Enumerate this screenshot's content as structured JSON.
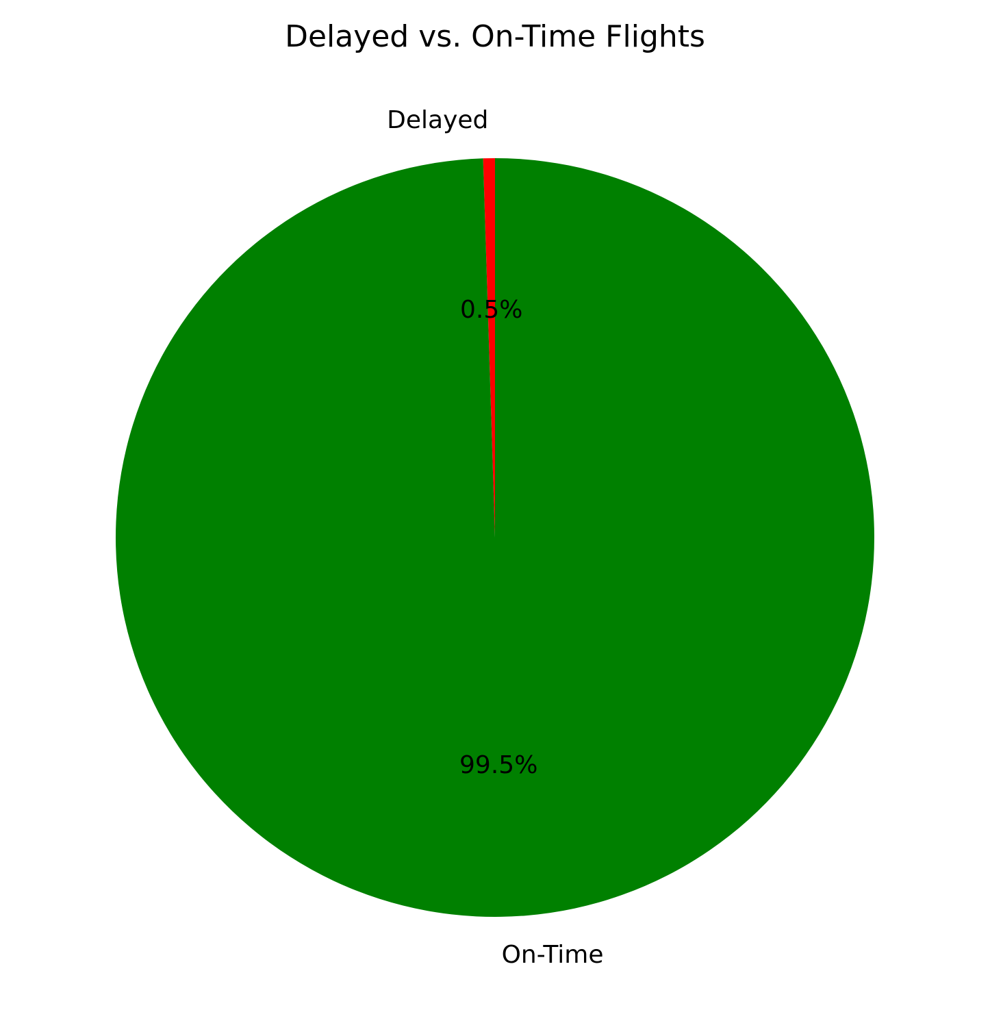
{
  "chart_data": {
    "type": "pie",
    "title": "Delayed vs. On-Time Flights",
    "slices": [
      {
        "label": "Delayed",
        "value": 0.5,
        "pct_label": "0.5%",
        "color": "#ff0000"
      },
      {
        "label": "On-Time",
        "value": 99.5,
        "pct_label": "99.5%",
        "color": "#008000"
      }
    ],
    "start_angle_deg": 90,
    "direction": "counterclockwise",
    "legend": "none"
  }
}
